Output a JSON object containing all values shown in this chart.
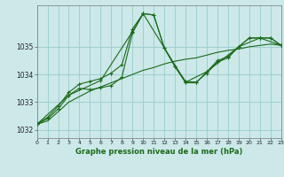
{
  "title": "Graphe pression niveau de la mer (hPa)",
  "background_color": "#cce8e8",
  "grid_color": "#99cccc",
  "line_color": "#1a6b1a",
  "xlim": [
    0,
    23
  ],
  "ylim": [
    1031.7,
    1036.5
  ],
  "yticks": [
    1032,
    1033,
    1034,
    1035
  ],
  "xticks": [
    0,
    1,
    2,
    3,
    4,
    5,
    6,
    7,
    8,
    9,
    10,
    11,
    12,
    13,
    14,
    15,
    16,
    17,
    18,
    19,
    20,
    21,
    22,
    23
  ],
  "series": [
    {
      "x": [
        0,
        1,
        2,
        3,
        4,
        5,
        6,
        7,
        8,
        9,
        10,
        11,
        12,
        13,
        14,
        15,
        16,
        17,
        18,
        19,
        20,
        21,
        22,
        23
      ],
      "y": [
        1032.2,
        1032.45,
        1032.85,
        1033.35,
        1033.65,
        1033.75,
        1033.85,
        1034.05,
        1034.35,
        1035.65,
        1036.2,
        1036.15,
        1034.95,
        1034.3,
        1033.75,
        1033.72,
        1034.05,
        1034.45,
        1034.6,
        1035.0,
        1035.32,
        1035.32,
        1035.32,
        1035.05
      ],
      "marker": true
    },
    {
      "x": [
        0,
        1,
        2,
        3,
        4,
        5,
        6,
        7,
        8,
        9,
        10,
        11,
        12,
        13,
        14,
        15,
        16,
        17,
        18,
        19,
        20,
        21,
        22,
        23
      ],
      "y": [
        1032.2,
        1032.4,
        1032.75,
        1033.25,
        1033.5,
        1033.45,
        1033.52,
        1033.6,
        1033.9,
        1035.5,
        1036.2,
        1036.15,
        1034.95,
        1034.28,
        1033.7,
        1033.7,
        1034.1,
        1034.5,
        1034.65,
        1035.0,
        1035.32,
        1035.32,
        1035.32,
        1035.05
      ],
      "marker": true
    },
    {
      "x": [
        0,
        3,
        6,
        9,
        10,
        14,
        16,
        19,
        21,
        23
      ],
      "y": [
        1032.2,
        1033.25,
        1033.78,
        1035.55,
        1036.2,
        1033.72,
        1034.1,
        1035.0,
        1035.32,
        1035.05
      ],
      "marker": true
    },
    {
      "x": [
        0,
        1,
        2,
        3,
        4,
        5,
        6,
        7,
        8,
        9,
        10,
        11,
        12,
        13,
        14,
        15,
        16,
        17,
        18,
        19,
        20,
        21,
        22,
        23
      ],
      "y": [
        1032.2,
        1032.32,
        1032.65,
        1033.0,
        1033.2,
        1033.4,
        1033.55,
        1033.7,
        1033.85,
        1034.0,
        1034.15,
        1034.25,
        1034.38,
        1034.48,
        1034.55,
        1034.6,
        1034.7,
        1034.8,
        1034.87,
        1034.92,
        1035.0,
        1035.05,
        1035.1,
        1035.05
      ],
      "marker": false
    }
  ]
}
